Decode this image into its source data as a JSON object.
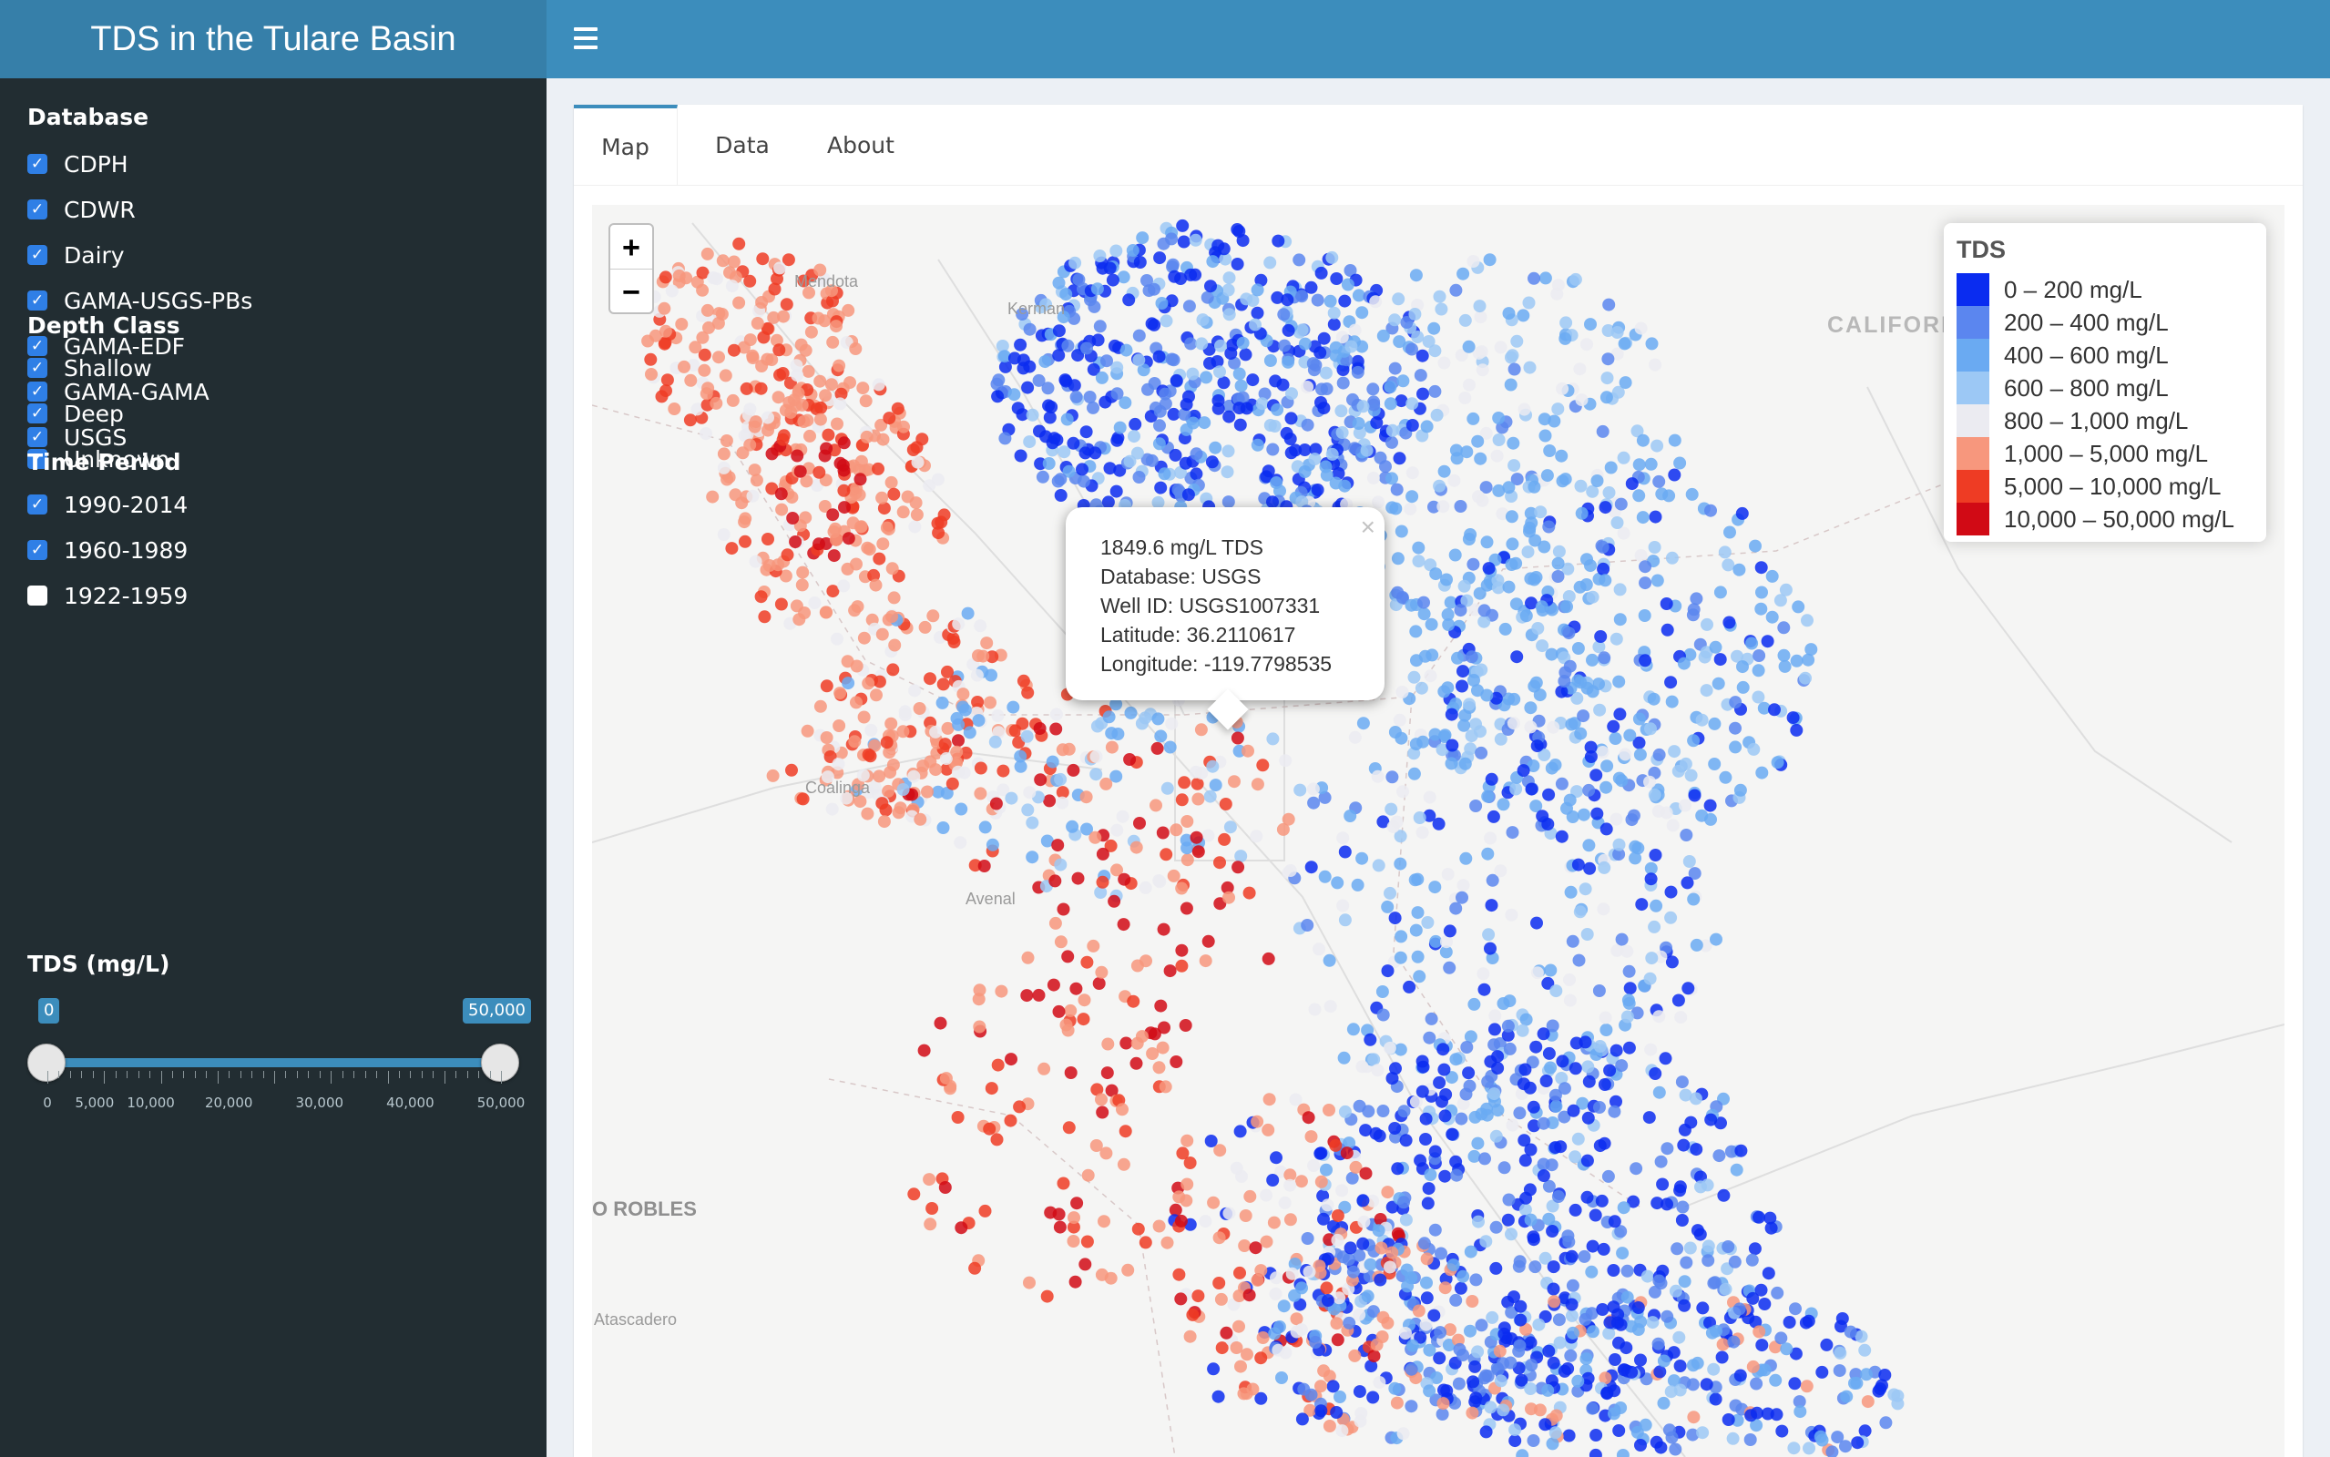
{
  "header": {
    "title": "TDS in the Tulare Basin"
  },
  "sidebar": {
    "database": {
      "heading": "Database",
      "options": [
        {
          "label": "CDPH",
          "checked": true
        },
        {
          "label": "CDWR",
          "checked": true
        },
        {
          "label": "Dairy",
          "checked": true
        },
        {
          "label": "GAMA-USGS-PBs",
          "checked": true
        },
        {
          "label": "GAMA-EDF",
          "checked": true
        },
        {
          "label": "GAMA-GAMA",
          "checked": true
        },
        {
          "label": "USGS",
          "checked": true
        }
      ]
    },
    "depth": {
      "heading": "Depth Class",
      "options": [
        {
          "label": "Shallow",
          "checked": true
        },
        {
          "label": "Deep",
          "checked": true
        },
        {
          "label": "Unknown",
          "checked": true
        }
      ]
    },
    "time": {
      "heading": "Time Period",
      "options": [
        {
          "label": "1990-2014",
          "checked": true
        },
        {
          "label": "1960-1989",
          "checked": true
        },
        {
          "label": "1922-1959",
          "checked": false
        }
      ]
    },
    "tds": {
      "heading": "TDS (mg/L)",
      "min_label": "0",
      "max_label": "50,000",
      "range_min": 0,
      "range_max": 50000,
      "tick_labels": [
        "0",
        "5,000",
        "10,000",
        "20,000",
        "30,000",
        "40,000",
        "50,000"
      ]
    }
  },
  "tabs": [
    {
      "label": "Map",
      "active": true
    },
    {
      "label": "Data",
      "active": false
    },
    {
      "label": "About",
      "active": false
    }
  ],
  "map": {
    "zoom_in": "+",
    "zoom_out": "−",
    "place_labels": [
      "Mendota",
      "Kerman",
      "CALIFORN",
      "Coalinga",
      "Avenal",
      "O ROBLES",
      "Atascadero"
    ],
    "legend": {
      "title": "TDS",
      "items": [
        {
          "label": "0 – 200 mg/L",
          "color": "#0a2cf0"
        },
        {
          "label": "200 – 400 mg/L",
          "color": "#5b86ef"
        },
        {
          "label": "400 – 600 mg/L",
          "color": "#6aaaf2"
        },
        {
          "label": "600 – 800 mg/L",
          "color": "#9cc8f5"
        },
        {
          "label": "800 – 1,000 mg/L",
          "color": "#ebebf1"
        },
        {
          "label": "1,000 – 5,000 mg/L",
          "color": "#f7977d"
        },
        {
          "label": "5,000 – 10,000 mg/L",
          "color": "#ee3c24"
        },
        {
          "label": "10,000 – 50,000 mg/L",
          "color": "#d10a15"
        }
      ]
    },
    "popup": {
      "lines": [
        "1849.6 mg/L TDS",
        "Database: USGS",
        "Well ID: USGS1007331",
        "Latitude: 36.2110617",
        "Longitude: -119.7798535"
      ],
      "close": "×"
    }
  }
}
